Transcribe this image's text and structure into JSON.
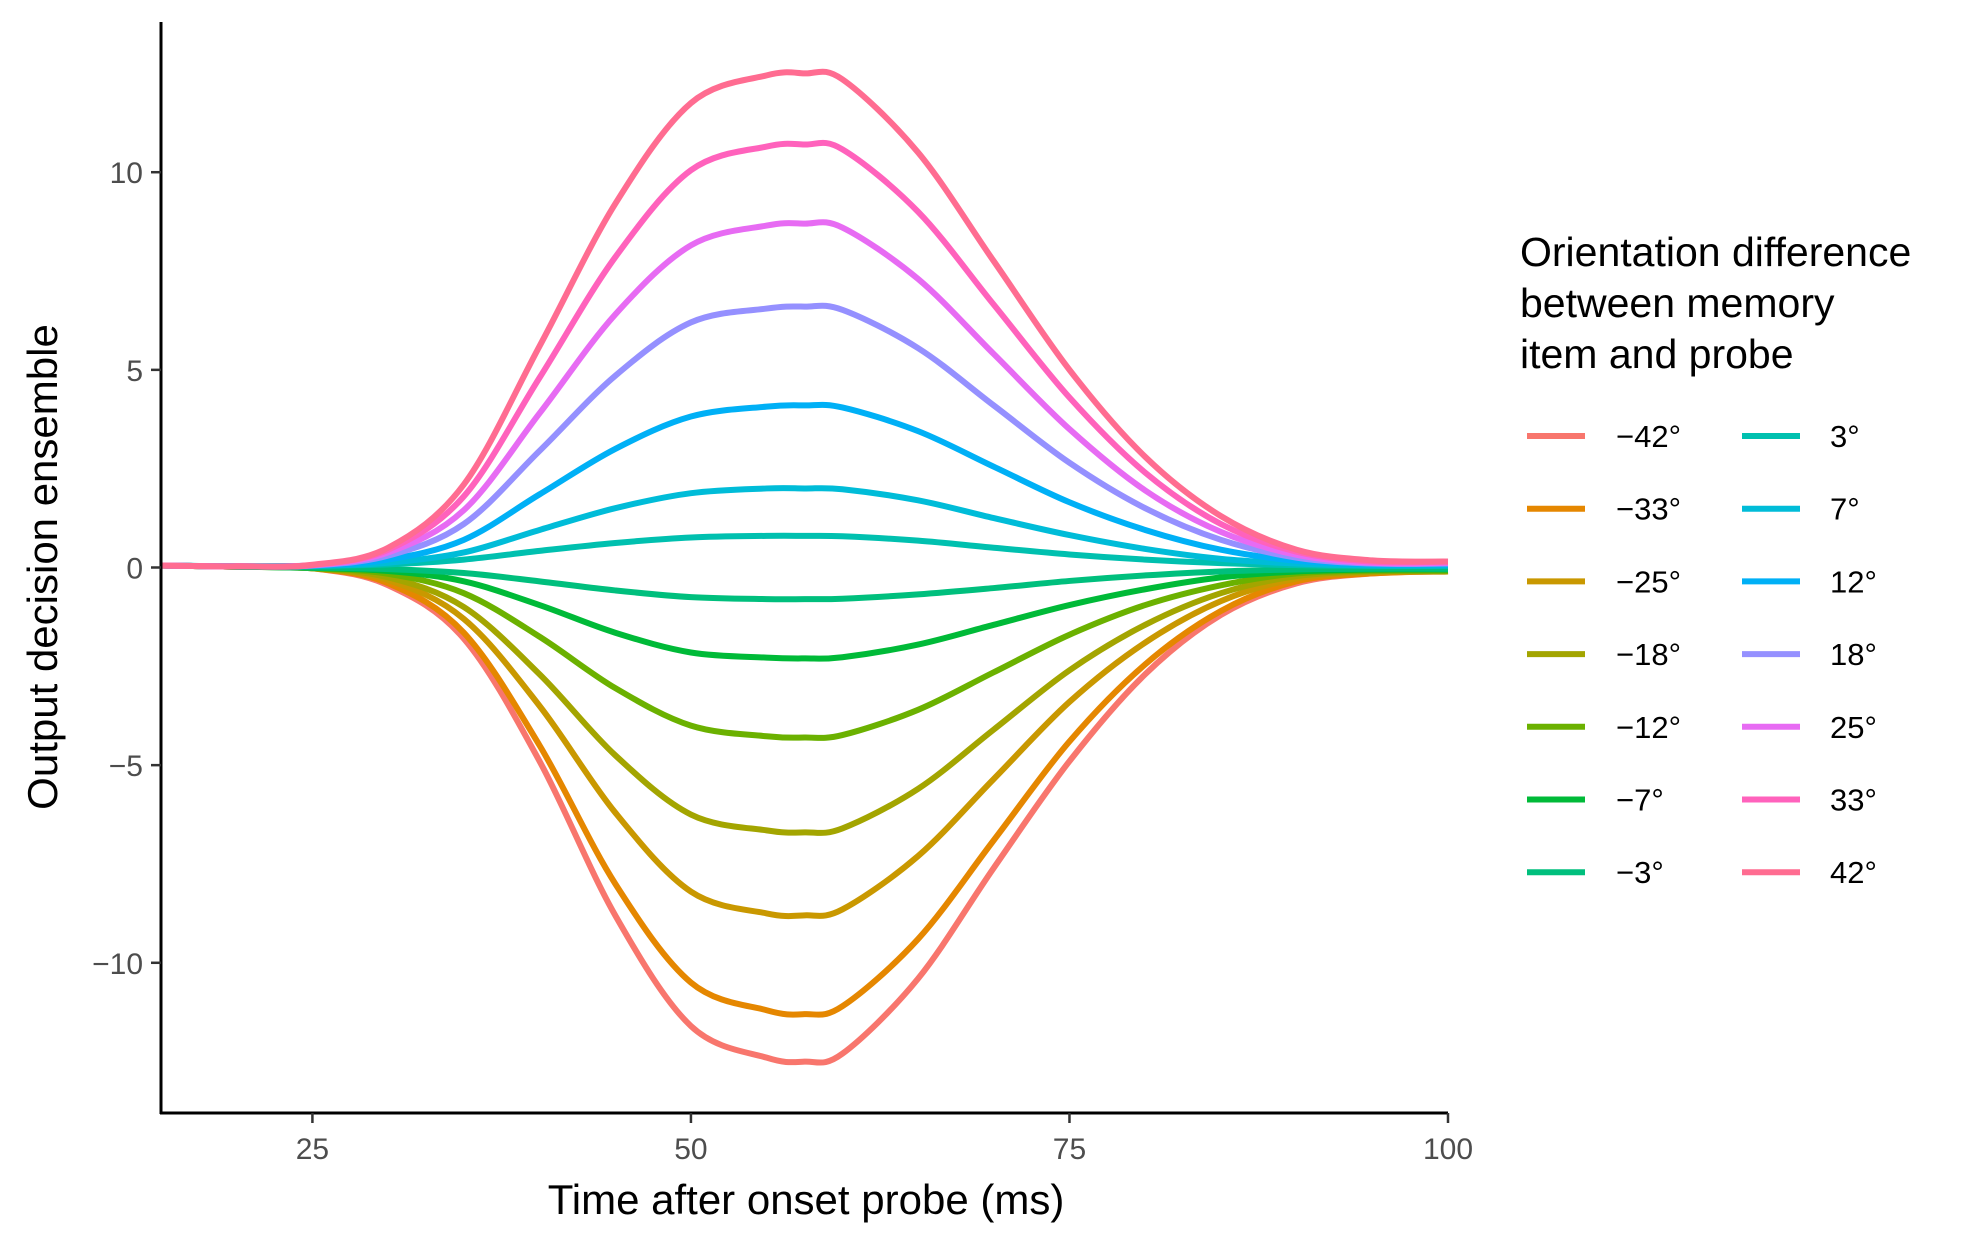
{
  "chart_data": {
    "type": "line",
    "title": "",
    "xlabel": "Time after onset probe (ms)",
    "ylabel": "Output decision ensemble",
    "xlim": [
      15,
      100
    ],
    "ylim": [
      -13.8,
      13.8
    ],
    "xticks": [
      25,
      50,
      75,
      100
    ],
    "yticks": [
      -10,
      -5,
      0,
      5,
      10
    ],
    "ytick_labels": [
      "−10",
      "−5",
      "0",
      "5",
      "10"
    ],
    "grid": false,
    "legend": {
      "title_lines": [
        "Orientation difference",
        "between memory",
        "item and probe"
      ],
      "placement": "right",
      "columns": 2
    },
    "peak_time": 57.5,
    "x": [
      15,
      20,
      25,
      30,
      35,
      40,
      45,
      50,
      55,
      57.5,
      60,
      65,
      70,
      75,
      80,
      85,
      90,
      95,
      100
    ],
    "series": [
      {
        "name": "−42°",
        "color": "#F8766D",
        "peak": -12.5,
        "values": [
          0.05,
          0.02,
          -0.02,
          -0.45,
          -1.8,
          -4.9,
          -8.8,
          -11.6,
          -12.4,
          -12.5,
          -12.3,
          -10.4,
          -7.6,
          -4.9,
          -2.7,
          -1.2,
          -0.4,
          -0.15,
          -0.1
        ]
      },
      {
        "name": "−33°",
        "color": "#E58700",
        "peak": -11.3,
        "values": [
          0.05,
          0.02,
          -0.02,
          -0.4,
          -1.65,
          -4.5,
          -8.0,
          -10.5,
          -11.2,
          -11.3,
          -11.1,
          -9.4,
          -6.9,
          -4.4,
          -2.45,
          -1.1,
          -0.35,
          -0.15,
          -0.1
        ]
      },
      {
        "name": "−25°",
        "color": "#C99800",
        "peak": -8.8,
        "values": [
          0.05,
          0.02,
          -0.02,
          -0.32,
          -1.3,
          -3.5,
          -6.2,
          -8.2,
          -8.75,
          -8.8,
          -8.65,
          -7.3,
          -5.35,
          -3.4,
          -1.9,
          -0.85,
          -0.28,
          -0.12,
          -0.1
        ]
      },
      {
        "name": "−18°",
        "color": "#A3A500",
        "peak": -6.7,
        "values": [
          0.05,
          0.02,
          -0.02,
          -0.25,
          -1.0,
          -2.7,
          -4.75,
          -6.25,
          -6.65,
          -6.7,
          -6.6,
          -5.6,
          -4.1,
          -2.6,
          -1.45,
          -0.65,
          -0.22,
          -0.1,
          -0.1
        ]
      },
      {
        "name": "−12°",
        "color": "#6BB100",
        "peak": -4.3,
        "values": [
          0.05,
          0.02,
          -0.02,
          -0.16,
          -0.65,
          -1.75,
          -3.05,
          -4.0,
          -4.27,
          -4.3,
          -4.24,
          -3.6,
          -2.65,
          -1.7,
          -0.95,
          -0.45,
          -0.15,
          -0.08,
          -0.08
        ]
      },
      {
        "name": "−7°",
        "color": "#00BA38",
        "peak": -2.3,
        "values": [
          0.05,
          0.02,
          -0.01,
          -0.09,
          -0.35,
          -0.95,
          -1.65,
          -2.15,
          -2.28,
          -2.3,
          -2.27,
          -1.95,
          -1.45,
          -0.95,
          -0.55,
          -0.25,
          -0.1,
          -0.05,
          -0.05
        ]
      },
      {
        "name": "−3°",
        "color": "#00BF7D",
        "peak": -0.8,
        "values": [
          0.05,
          0.02,
          0.0,
          -0.04,
          -0.14,
          -0.35,
          -0.58,
          -0.75,
          -0.8,
          -0.8,
          -0.79,
          -0.68,
          -0.52,
          -0.34,
          -0.2,
          -0.1,
          -0.05,
          -0.03,
          -0.03
        ]
      },
      {
        "name": "3°",
        "color": "#00C0AF",
        "peak": 0.8,
        "values": [
          0.05,
          0.03,
          0.04,
          0.08,
          0.2,
          0.42,
          0.62,
          0.76,
          0.8,
          0.8,
          0.79,
          0.68,
          0.5,
          0.33,
          0.2,
          0.11,
          0.06,
          0.04,
          0.04
        ]
      },
      {
        "name": "7°",
        "color": "#00BCD8",
        "peak": 2.0,
        "values": [
          0.05,
          0.03,
          0.04,
          0.12,
          0.38,
          0.95,
          1.5,
          1.88,
          2.0,
          2.0,
          1.98,
          1.7,
          1.25,
          0.82,
          0.47,
          0.22,
          0.1,
          0.05,
          0.05
        ]
      },
      {
        "name": "12°",
        "color": "#00B0F6",
        "peak": 4.1,
        "values": [
          0.05,
          0.03,
          0.05,
          0.2,
          0.7,
          1.85,
          3.0,
          3.82,
          4.07,
          4.1,
          4.05,
          3.45,
          2.55,
          1.65,
          0.95,
          0.45,
          0.17,
          0.08,
          0.08
        ]
      },
      {
        "name": "18°",
        "color": "#9590FF",
        "peak": 6.6,
        "values": [
          0.05,
          0.03,
          0.05,
          0.3,
          1.1,
          2.95,
          4.85,
          6.2,
          6.55,
          6.6,
          6.52,
          5.55,
          4.1,
          2.65,
          1.5,
          0.7,
          0.25,
          0.1,
          0.1
        ]
      },
      {
        "name": "25°",
        "color": "#E76BF3",
        "peak": 8.7,
        "values": [
          0.05,
          0.03,
          0.06,
          0.38,
          1.45,
          3.9,
          6.4,
          8.15,
          8.65,
          8.7,
          8.6,
          7.3,
          5.4,
          3.5,
          1.95,
          0.9,
          0.32,
          0.12,
          0.12
        ]
      },
      {
        "name": "33°",
        "color": "#FF62BC",
        "peak": 10.7,
        "values": [
          0.05,
          0.03,
          0.06,
          0.45,
          1.8,
          4.8,
          7.85,
          10.05,
          10.65,
          10.7,
          10.58,
          9.0,
          6.65,
          4.3,
          2.4,
          1.1,
          0.4,
          0.15,
          0.15
        ]
      },
      {
        "name": "42°",
        "color": "#FF6C91",
        "peak": 12.5,
        "values": [
          0.05,
          0.03,
          0.07,
          0.5,
          2.1,
          5.6,
          9.2,
          11.75,
          12.45,
          12.5,
          12.35,
          10.5,
          7.75,
          5.0,
          2.8,
          1.3,
          0.45,
          0.18,
          0.15
        ]
      }
    ]
  }
}
